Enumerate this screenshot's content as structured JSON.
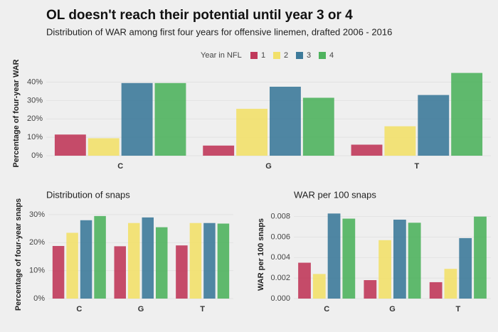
{
  "title": "OL doesn't reach their potential until year 3 or 4",
  "subtitle": "Distribution of WAR among first four years for offensive linemen, drafted 2006 - 2016",
  "legend_title": "Year in NFL",
  "chart_data": [
    {
      "type": "bar",
      "ylabel": "Percentage of four-year WAR",
      "categories": [
        "C",
        "G",
        "T"
      ],
      "series": [
        {
          "name": "1",
          "color": "#c0395a",
          "values": [
            11.5,
            5.5,
            6
          ]
        },
        {
          "name": "2",
          "color": "#f2e06a",
          "values": [
            9.5,
            25.5,
            16
          ]
        },
        {
          "name": "3",
          "color": "#3d7a9a",
          "values": [
            39.5,
            37.5,
            33
          ]
        },
        {
          "name": "4",
          "color": "#4fb35e",
          "values": [
            39.5,
            31.5,
            45
          ]
        }
      ],
      "ylim": [
        0,
        46
      ],
      "yticks": [
        {
          "value": 0,
          "label": "0%"
        },
        {
          "value": 10,
          "label": "10%"
        },
        {
          "value": 20,
          "label": "20%"
        },
        {
          "value": 30,
          "label": "30%"
        },
        {
          "value": 40,
          "label": "40%"
        }
      ],
      "grid": true
    },
    {
      "type": "bar",
      "title": "Distribution of snaps",
      "ylabel": "Percentage of four-year snaps",
      "categories": [
        "C",
        "G",
        "T"
      ],
      "series": [
        {
          "name": "1",
          "color": "#c0395a",
          "values": [
            18.8,
            18.7,
            19
          ]
        },
        {
          "name": "2",
          "color": "#f2e06a",
          "values": [
            23.5,
            27,
            27
          ]
        },
        {
          "name": "3",
          "color": "#3d7a9a",
          "values": [
            28,
            29,
            27
          ]
        },
        {
          "name": "4",
          "color": "#4fb35e",
          "values": [
            29.5,
            25.5,
            26.8
          ]
        }
      ],
      "ylim": [
        0,
        31.5
      ],
      "yticks": [
        {
          "value": 0,
          "label": "0%"
        },
        {
          "value": 10,
          "label": "10%"
        },
        {
          "value": 20,
          "label": "20%"
        },
        {
          "value": 30,
          "label": "30%"
        }
      ],
      "grid": true
    },
    {
      "type": "bar",
      "title": "WAR per 100 snaps",
      "ylabel": "WAR per 100 snaps",
      "categories": [
        "C",
        "G",
        "T"
      ],
      "series": [
        {
          "name": "1",
          "color": "#c0395a",
          "values": [
            0.0035,
            0.0018,
            0.0016
          ]
        },
        {
          "name": "2",
          "color": "#f2e06a",
          "values": [
            0.0024,
            0.0057,
            0.0029
          ]
        },
        {
          "name": "3",
          "color": "#3d7a9a",
          "values": [
            0.0083,
            0.0077,
            0.0059
          ]
        },
        {
          "name": "4",
          "color": "#4fb35e",
          "values": [
            0.0078,
            0.0074,
            0.008
          ]
        }
      ],
      "ylim": [
        0,
        0.0086
      ],
      "yticks": [
        {
          "value": 0,
          "label": "0.000"
        },
        {
          "value": 0.002,
          "label": "0.002"
        },
        {
          "value": 0.004,
          "label": "0.004"
        },
        {
          "value": 0.006,
          "label": "0.006"
        },
        {
          "value": 0.008,
          "label": "0.008"
        }
      ],
      "grid": true
    }
  ]
}
